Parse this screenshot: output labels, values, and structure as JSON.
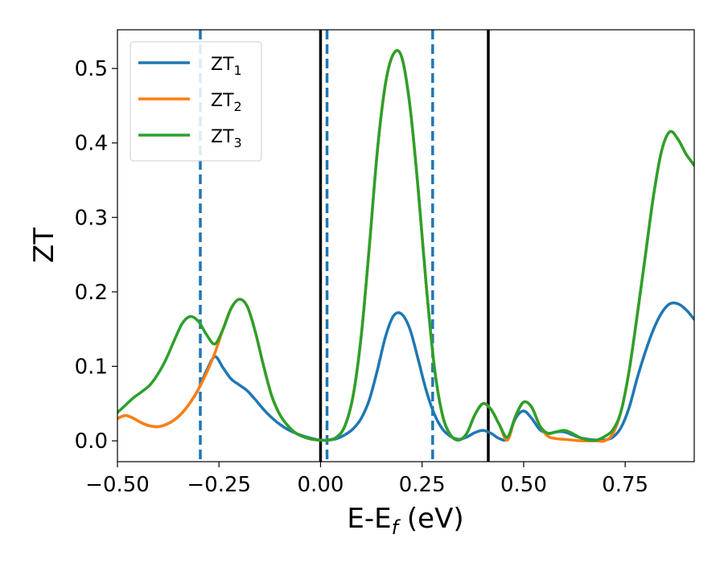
{
  "chart_data": {
    "type": "line",
    "xlabel": "E-E",
    "xlabel_sub": "f",
    "xlabel_unit": " (eV)",
    "ylabel": "ZT",
    "xlim": [
      -0.5,
      0.92
    ],
    "ylim": [
      -0.028,
      0.552
    ],
    "xticks": [
      -0.5,
      -0.25,
      0.0,
      0.25,
      0.5,
      0.75
    ],
    "xtick_labels": [
      "−0.50",
      "−0.25",
      "0.00",
      "0.25",
      "0.50",
      "0.75"
    ],
    "yticks": [
      0.0,
      0.1,
      0.2,
      0.3,
      0.4,
      0.5
    ],
    "ytick_labels": [
      "0.0",
      "0.1",
      "0.2",
      "0.3",
      "0.4",
      "0.5"
    ],
    "grid": false,
    "legend_position": "top-left",
    "series": [
      {
        "name": "ZT",
        "subscript": "1",
        "color": "#1f77b4",
        "x": [
          -0.5,
          -0.48,
          -0.46,
          -0.44,
          -0.42,
          -0.4,
          -0.38,
          -0.36,
          -0.34,
          -0.32,
          -0.3,
          -0.28,
          -0.26,
          -0.24,
          -0.22,
          -0.2,
          -0.18,
          -0.16,
          -0.14,
          -0.12,
          -0.1,
          -0.08,
          -0.06,
          -0.04,
          -0.02,
          0.0,
          0.02,
          0.04,
          0.06,
          0.08,
          0.1,
          0.12,
          0.14,
          0.16,
          0.18,
          0.2,
          0.22,
          0.24,
          0.26,
          0.28,
          0.3,
          0.32,
          0.34,
          0.36,
          0.38,
          0.4,
          0.42,
          0.44,
          0.46,
          0.48,
          0.5,
          0.52,
          0.54,
          0.56,
          0.58,
          0.6,
          0.62,
          0.64,
          0.66,
          0.68,
          0.7,
          0.72,
          0.74,
          0.76,
          0.78,
          0.8,
          0.82,
          0.84,
          0.86,
          0.88,
          0.9,
          0.92
        ],
        "values": [
          0.03,
          0.034,
          0.03,
          0.024,
          0.02,
          0.019,
          0.022,
          0.028,
          0.038,
          0.052,
          0.07,
          0.095,
          0.113,
          0.098,
          0.083,
          0.075,
          0.067,
          0.055,
          0.042,
          0.031,
          0.022,
          0.015,
          0.01,
          0.006,
          0.003,
          0.001,
          0.001,
          0.003,
          0.008,
          0.016,
          0.03,
          0.055,
          0.095,
          0.14,
          0.168,
          0.17,
          0.15,
          0.11,
          0.068,
          0.036,
          0.016,
          0.006,
          0.002,
          0.005,
          0.011,
          0.014,
          0.01,
          0.003,
          0.003,
          0.03,
          0.04,
          0.03,
          0.015,
          0.01,
          0.012,
          0.012,
          0.008,
          0.004,
          0.002,
          0.001,
          0.001,
          0.005,
          0.018,
          0.045,
          0.085,
          0.12,
          0.15,
          0.172,
          0.184,
          0.184,
          0.176,
          0.163
        ]
      },
      {
        "name": "ZT",
        "subscript": "2",
        "color": "#ff7f0e",
        "x": [
          -0.5,
          -0.48,
          -0.46,
          -0.44,
          -0.42,
          -0.4,
          -0.38,
          -0.36,
          -0.34,
          -0.32,
          -0.3,
          -0.28,
          -0.26,
          -0.24,
          -0.22,
          -0.2,
          -0.18,
          -0.16,
          -0.14,
          -0.12,
          -0.1,
          -0.08,
          -0.06,
          -0.04,
          -0.02,
          0.0,
          0.02,
          0.04,
          0.06,
          0.08,
          0.1,
          0.12,
          0.14,
          0.16,
          0.18,
          0.2,
          0.22,
          0.24,
          0.26,
          0.28,
          0.3,
          0.32,
          0.34,
          0.36,
          0.38,
          0.4,
          0.42,
          0.44,
          0.46,
          0.48,
          0.5,
          0.52,
          0.54,
          0.56,
          0.58,
          0.6,
          0.62,
          0.64,
          0.66,
          0.68,
          0.7,
          0.72,
          0.74,
          0.76,
          0.78,
          0.8,
          0.82,
          0.84,
          0.86,
          0.88,
          0.9,
          0.92
        ],
        "values": [
          0.03,
          0.034,
          0.03,
          0.024,
          0.02,
          0.019,
          0.022,
          0.028,
          0.038,
          0.052,
          0.07,
          0.092,
          0.118,
          0.15,
          0.178,
          0.19,
          0.18,
          0.145,
          0.1,
          0.06,
          0.035,
          0.02,
          0.01,
          0.005,
          0.002,
          0.001,
          0.001,
          0.005,
          0.02,
          0.06,
          0.14,
          0.26,
          0.39,
          0.48,
          0.52,
          0.515,
          0.45,
          0.34,
          0.21,
          0.1,
          0.035,
          0.008,
          0.001,
          0.01,
          0.035,
          0.05,
          0.042,
          0.022,
          0.001,
          0.033,
          0.052,
          0.045,
          0.02,
          0.006,
          0.003,
          0.002,
          0.001,
          0.0,
          0.0,
          0.0,
          0.0,
          0.01,
          0.04,
          0.095,
          0.17,
          0.25,
          0.33,
          0.39,
          0.415,
          0.405,
          0.385,
          0.37
        ]
      },
      {
        "name": "ZT",
        "subscript": "3",
        "color": "#2ca02c",
        "x": [
          -0.5,
          -0.48,
          -0.46,
          -0.44,
          -0.42,
          -0.4,
          -0.38,
          -0.36,
          -0.34,
          -0.32,
          -0.3,
          -0.28,
          -0.26,
          -0.24,
          -0.22,
          -0.2,
          -0.18,
          -0.16,
          -0.14,
          -0.12,
          -0.1,
          -0.08,
          -0.06,
          -0.04,
          -0.02,
          0.0,
          0.02,
          0.04,
          0.06,
          0.08,
          0.1,
          0.12,
          0.14,
          0.16,
          0.18,
          0.2,
          0.22,
          0.24,
          0.26,
          0.28,
          0.3,
          0.32,
          0.34,
          0.36,
          0.38,
          0.4,
          0.42,
          0.44,
          0.46,
          0.48,
          0.5,
          0.52,
          0.54,
          0.56,
          0.58,
          0.6,
          0.62,
          0.64,
          0.66,
          0.68,
          0.7,
          0.72,
          0.74,
          0.76,
          0.78,
          0.8,
          0.82,
          0.84,
          0.86,
          0.88,
          0.9,
          0.92
        ],
        "values": [
          0.038,
          0.048,
          0.058,
          0.066,
          0.075,
          0.09,
          0.11,
          0.135,
          0.158,
          0.167,
          0.16,
          0.142,
          0.13,
          0.15,
          0.178,
          0.19,
          0.18,
          0.145,
          0.1,
          0.06,
          0.035,
          0.02,
          0.01,
          0.005,
          0.002,
          0.001,
          0.001,
          0.005,
          0.02,
          0.06,
          0.14,
          0.26,
          0.39,
          0.48,
          0.52,
          0.515,
          0.45,
          0.34,
          0.21,
          0.1,
          0.035,
          0.008,
          0.001,
          0.01,
          0.035,
          0.05,
          0.042,
          0.022,
          0.005,
          0.033,
          0.052,
          0.045,
          0.02,
          0.01,
          0.012,
          0.014,
          0.01,
          0.004,
          0.001,
          0.001,
          0.006,
          0.015,
          0.04,
          0.095,
          0.17,
          0.25,
          0.33,
          0.39,
          0.415,
          0.405,
          0.385,
          0.37
        ]
      }
    ],
    "vlines": [
      {
        "x": 0.0,
        "style": "solid",
        "color": "#000000"
      },
      {
        "x": 0.413,
        "style": "solid",
        "color": "#000000"
      },
      {
        "x": -0.296,
        "style": "dashed",
        "color": "#1f77b4"
      },
      {
        "x": 0.016,
        "style": "dashed",
        "color": "#1f77b4"
      },
      {
        "x": 0.276,
        "style": "dashed",
        "color": "#1f77b4"
      }
    ]
  }
}
